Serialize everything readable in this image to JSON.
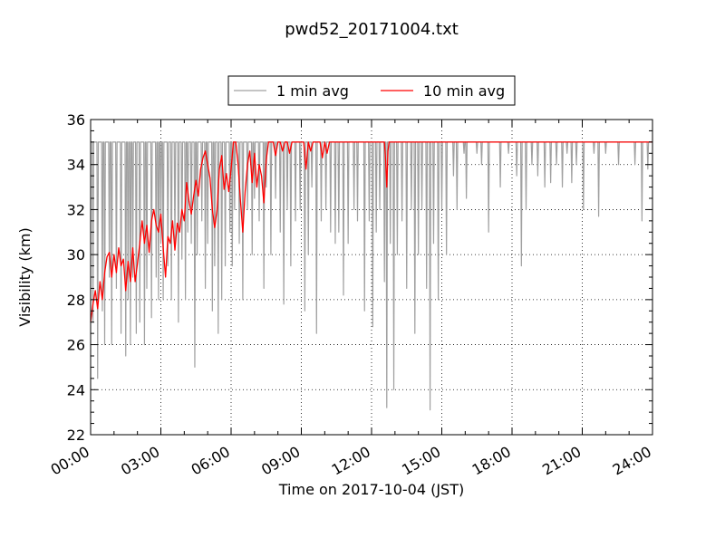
{
  "chart_data": {
    "type": "line",
    "title": "pwd52_20171004.txt",
    "xlabel": "Time on 2017-10-04 (JST)",
    "ylabel": "Visibility (km)",
    "x_unit": "hours (JST)",
    "xlim": [
      0,
      24
    ],
    "ylim": [
      22,
      36
    ],
    "x_ticks": [
      0,
      3,
      6,
      9,
      12,
      15,
      18,
      21,
      24
    ],
    "x_tick_labels": [
      "00:00",
      "03:00",
      "06:00",
      "09:00",
      "12:00",
      "15:00",
      "18:00",
      "21:00",
      "24:00"
    ],
    "y_ticks": [
      22,
      24,
      26,
      28,
      30,
      32,
      34,
      36
    ],
    "y_tick_labels": [
      "22",
      "24",
      "26",
      "28",
      "30",
      "32",
      "34",
      "36"
    ],
    "grid": true,
    "legend_position": "top-center, above plot",
    "series": [
      {
        "name": "1 min avg",
        "color": "#a0a0a0",
        "max_value": 35,
        "dips": [
          [
            0.1,
            27.0
          ],
          [
            0.3,
            24.5
          ],
          [
            0.5,
            27.5
          ],
          [
            0.6,
            26.0
          ],
          [
            0.8,
            29.0
          ],
          [
            0.9,
            26.0
          ],
          [
            1.1,
            28.5
          ],
          [
            1.3,
            26.5
          ],
          [
            1.5,
            25.5
          ],
          [
            1.6,
            28.0
          ],
          [
            1.7,
            26.0
          ],
          [
            1.8,
            29.0
          ],
          [
            1.95,
            26.5
          ],
          [
            2.1,
            27.0
          ],
          [
            2.3,
            26.0
          ],
          [
            2.4,
            28.5
          ],
          [
            2.6,
            27.2
          ],
          [
            2.8,
            29.0
          ],
          [
            2.9,
            28.0
          ],
          [
            3.0,
            30.5
          ],
          [
            3.1,
            28.0
          ],
          [
            3.3,
            29.5
          ],
          [
            3.45,
            28.0
          ],
          [
            3.6,
            30.5
          ],
          [
            3.75,
            27.0
          ],
          [
            3.9,
            29.8
          ],
          [
            4.05,
            28.0
          ],
          [
            4.15,
            31.0
          ],
          [
            4.3,
            30.5
          ],
          [
            4.45,
            25.0
          ],
          [
            4.55,
            30.0
          ],
          [
            4.75,
            31.5
          ],
          [
            4.9,
            28.5
          ],
          [
            5.0,
            30.5
          ],
          [
            5.2,
            27.5
          ],
          [
            5.3,
            29.5
          ],
          [
            5.45,
            26.5
          ],
          [
            5.6,
            28.0
          ],
          [
            5.75,
            29.5
          ],
          [
            5.95,
            31.0
          ],
          [
            6.05,
            29.5
          ],
          [
            6.15,
            32.0
          ],
          [
            6.35,
            30.5
          ],
          [
            6.5,
            28.0
          ],
          [
            6.7,
            32.0
          ],
          [
            6.9,
            30.0
          ],
          [
            7.0,
            32.5
          ],
          [
            7.2,
            31.5
          ],
          [
            7.4,
            28.5
          ],
          [
            7.5,
            33.0
          ],
          [
            7.7,
            30.0
          ],
          [
            7.9,
            32.5
          ],
          [
            8.1,
            31.0
          ],
          [
            8.25,
            27.8
          ],
          [
            8.4,
            32.0
          ],
          [
            8.55,
            29.5
          ],
          [
            8.75,
            31.5
          ],
          [
            8.95,
            32.0
          ],
          [
            9.15,
            27.5
          ],
          [
            9.3,
            30.0
          ],
          [
            9.45,
            33.0
          ],
          [
            9.65,
            26.5
          ],
          [
            9.85,
            31.5
          ],
          [
            10.05,
            32.0
          ],
          [
            10.25,
            31.0
          ],
          [
            10.45,
            30.5
          ],
          [
            10.6,
            31.0
          ],
          [
            10.8,
            28.2
          ],
          [
            11.0,
            30.5
          ],
          [
            11.25,
            32.0
          ],
          [
            11.4,
            31.5
          ],
          [
            11.7,
            27.5
          ],
          [
            11.9,
            31.5
          ],
          [
            12.05,
            26.8
          ],
          [
            12.2,
            31.0
          ],
          [
            12.35,
            32.0
          ],
          [
            12.55,
            28.8
          ],
          [
            12.65,
            23.2
          ],
          [
            12.8,
            30.5
          ],
          [
            12.95,
            24.0
          ],
          [
            13.1,
            30.0
          ],
          [
            13.3,
            31.5
          ],
          [
            13.5,
            28.5
          ],
          [
            13.7,
            32.0
          ],
          [
            13.85,
            26.5
          ],
          [
            14.0,
            30.0
          ],
          [
            14.15,
            32.0
          ],
          [
            14.35,
            28.5
          ],
          [
            14.5,
            23.1
          ],
          [
            14.65,
            30.5
          ],
          [
            14.85,
            28.0
          ],
          [
            15.0,
            32.0
          ],
          [
            15.2,
            30.0
          ],
          [
            15.5,
            33.5
          ],
          [
            15.65,
            32.0
          ],
          [
            15.95,
            34.5
          ],
          [
            16.05,
            32.5
          ],
          [
            16.5,
            34.5
          ],
          [
            16.7,
            34.0
          ],
          [
            17.0,
            31.0
          ],
          [
            17.5,
            33.0
          ],
          [
            17.85,
            34.5
          ],
          [
            18.2,
            33.5
          ],
          [
            18.4,
            29.5
          ],
          [
            18.6,
            32.0
          ],
          [
            18.85,
            34.0
          ],
          [
            19.1,
            33.5
          ],
          [
            19.4,
            33.0
          ],
          [
            19.65,
            33.2
          ],
          [
            19.9,
            34.0
          ],
          [
            20.15,
            33.0
          ],
          [
            20.35,
            34.5
          ],
          [
            20.55,
            33.2
          ],
          [
            20.75,
            34.0
          ],
          [
            21.05,
            32.0
          ],
          [
            21.5,
            34.5
          ],
          [
            21.7,
            31.7
          ],
          [
            22.0,
            34.5
          ],
          [
            22.55,
            34.0
          ],
          [
            23.25,
            34.0
          ],
          [
            23.55,
            31.5
          ],
          [
            23.8,
            33.8
          ]
        ]
      },
      {
        "name": "10 min avg",
        "color": "#ff0000",
        "points": [
          [
            0.0,
            27.0
          ],
          [
            0.1,
            27.8
          ],
          [
            0.2,
            28.4
          ],
          [
            0.3,
            27.6
          ],
          [
            0.4,
            28.8
          ],
          [
            0.5,
            28.0
          ],
          [
            0.6,
            29.2
          ],
          [
            0.7,
            29.9
          ],
          [
            0.8,
            30.1
          ],
          [
            0.9,
            29.0
          ],
          [
            1.0,
            30.0
          ],
          [
            1.1,
            29.2
          ],
          [
            1.2,
            30.3
          ],
          [
            1.3,
            29.5
          ],
          [
            1.4,
            29.8
          ],
          [
            1.5,
            28.4
          ],
          [
            1.6,
            29.7
          ],
          [
            1.7,
            28.8
          ],
          [
            1.8,
            30.3
          ],
          [
            1.9,
            28.8
          ],
          [
            2.0,
            29.6
          ],
          [
            2.1,
            30.5
          ],
          [
            2.2,
            31.5
          ],
          [
            2.3,
            30.5
          ],
          [
            2.4,
            31.3
          ],
          [
            2.5,
            30.1
          ],
          [
            2.6,
            31.5
          ],
          [
            2.7,
            32.0
          ],
          [
            2.8,
            31.3
          ],
          [
            2.9,
            31.0
          ],
          [
            3.0,
            31.8
          ],
          [
            3.1,
            30.3
          ],
          [
            3.2,
            29.0
          ],
          [
            3.3,
            30.8
          ],
          [
            3.4,
            30.5
          ],
          [
            3.5,
            31.5
          ],
          [
            3.6,
            30.2
          ],
          [
            3.7,
            31.4
          ],
          [
            3.8,
            31.0
          ],
          [
            3.9,
            32.0
          ],
          [
            4.0,
            31.5
          ],
          [
            4.1,
            33.2
          ],
          [
            4.2,
            32.4
          ],
          [
            4.3,
            31.8
          ],
          [
            4.4,
            32.6
          ],
          [
            4.5,
            33.3
          ],
          [
            4.6,
            32.6
          ],
          [
            4.7,
            33.8
          ],
          [
            4.8,
            34.3
          ],
          [
            4.9,
            34.6
          ],
          [
            5.0,
            34.0
          ],
          [
            5.1,
            33.4
          ],
          [
            5.2,
            32.0
          ],
          [
            5.3,
            31.2
          ],
          [
            5.4,
            32.0
          ],
          [
            5.5,
            33.8
          ],
          [
            5.6,
            34.4
          ],
          [
            5.7,
            32.9
          ],
          [
            5.8,
            33.6
          ],
          [
            5.9,
            32.8
          ],
          [
            6.0,
            33.8
          ],
          [
            6.1,
            35.0
          ],
          [
            6.2,
            35.0
          ],
          [
            6.3,
            34.0
          ],
          [
            6.4,
            32.4
          ],
          [
            6.5,
            31.0
          ],
          [
            6.6,
            32.8
          ],
          [
            6.7,
            34.0
          ],
          [
            6.8,
            34.6
          ],
          [
            6.9,
            33.2
          ],
          [
            7.0,
            34.5
          ],
          [
            7.1,
            33.0
          ],
          [
            7.2,
            34.0
          ],
          [
            7.3,
            33.5
          ],
          [
            7.4,
            32.3
          ],
          [
            7.5,
            34.2
          ],
          [
            7.6,
            35.0
          ],
          [
            7.7,
            35.0
          ],
          [
            7.8,
            35.0
          ],
          [
            7.9,
            34.4
          ],
          [
            8.0,
            35.0
          ],
          [
            8.1,
            35.0
          ],
          [
            8.2,
            34.6
          ],
          [
            8.3,
            35.0
          ],
          [
            8.4,
            35.0
          ],
          [
            8.5,
            34.5
          ],
          [
            8.6,
            35.0
          ],
          [
            8.7,
            35.0
          ],
          [
            8.8,
            35.0
          ],
          [
            8.9,
            35.0
          ],
          [
            9.0,
            35.0
          ],
          [
            9.1,
            35.0
          ],
          [
            9.2,
            33.8
          ],
          [
            9.3,
            35.0
          ],
          [
            9.4,
            34.6
          ],
          [
            9.5,
            35.0
          ],
          [
            9.6,
            35.0
          ],
          [
            9.7,
            35.0
          ],
          [
            9.8,
            35.0
          ],
          [
            9.9,
            34.3
          ],
          [
            10.0,
            35.0
          ],
          [
            10.1,
            34.5
          ],
          [
            10.2,
            35.0
          ],
          [
            10.3,
            35.0
          ],
          [
            10.4,
            35.0
          ],
          [
            10.5,
            35.0
          ],
          [
            10.6,
            35.0
          ],
          [
            10.7,
            35.0
          ],
          [
            10.8,
            35.0
          ],
          [
            11.0,
            35.0
          ],
          [
            11.2,
            35.0
          ],
          [
            11.4,
            35.0
          ],
          [
            11.6,
            35.0
          ],
          [
            11.8,
            35.0
          ],
          [
            12.0,
            35.0
          ],
          [
            12.2,
            35.0
          ],
          [
            12.4,
            35.0
          ],
          [
            12.55,
            35.0
          ],
          [
            12.6,
            34.2
          ],
          [
            12.65,
            33.0
          ],
          [
            12.7,
            34.6
          ],
          [
            12.75,
            35.0
          ],
          [
            13.0,
            35.0
          ],
          [
            14.0,
            35.0
          ],
          [
            15.0,
            35.0
          ],
          [
            16.0,
            35.0
          ],
          [
            17.0,
            35.0
          ],
          [
            18.0,
            35.0
          ],
          [
            19.0,
            35.0
          ],
          [
            20.0,
            35.0
          ],
          [
            21.0,
            35.0
          ],
          [
            22.0,
            35.0
          ],
          [
            23.0,
            35.0
          ],
          [
            24.0,
            35.0
          ]
        ]
      }
    ]
  }
}
